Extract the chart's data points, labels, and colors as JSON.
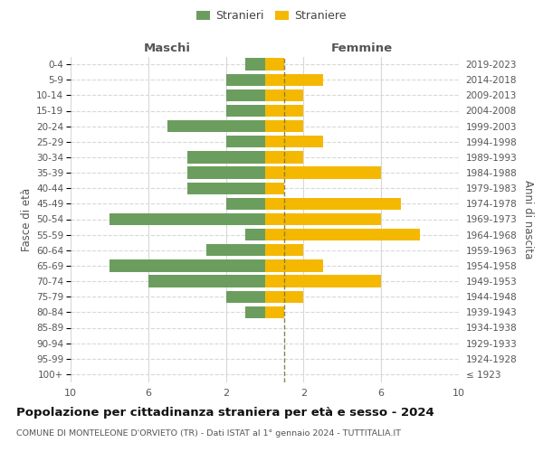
{
  "age_groups": [
    "100+",
    "95-99",
    "90-94",
    "85-89",
    "80-84",
    "75-79",
    "70-74",
    "65-69",
    "60-64",
    "55-59",
    "50-54",
    "45-49",
    "40-44",
    "35-39",
    "30-34",
    "25-29",
    "20-24",
    "15-19",
    "10-14",
    "5-9",
    "0-4"
  ],
  "birth_years": [
    "≤ 1923",
    "1924-1928",
    "1929-1933",
    "1934-1938",
    "1939-1943",
    "1944-1948",
    "1949-1953",
    "1954-1958",
    "1959-1963",
    "1964-1968",
    "1969-1973",
    "1974-1978",
    "1979-1983",
    "1984-1988",
    "1989-1993",
    "1994-1998",
    "1999-2003",
    "2004-2008",
    "2009-2013",
    "2014-2018",
    "2019-2023"
  ],
  "maschi": [
    0,
    0,
    0,
    0,
    1,
    2,
    6,
    8,
    3,
    1,
    8,
    2,
    4,
    4,
    4,
    2,
    5,
    2,
    2,
    2,
    1
  ],
  "femmine": [
    0,
    0,
    0,
    0,
    1,
    2,
    6,
    3,
    2,
    8,
    6,
    7,
    1,
    6,
    2,
    3,
    2,
    2,
    2,
    3,
    1
  ],
  "male_color": "#6b9e5e",
  "female_color": "#f5b800",
  "center_line_color": "#7a7a3a",
  "title": "Popolazione per cittadinanza straniera per età e sesso - 2024",
  "subtitle": "COMUNE DI MONTELEONE D'ORVIETO (TR) - Dati ISTAT al 1° gennaio 2024 - TUTTITALIA.IT",
  "ylabel_left": "Fasce di età",
  "ylabel_right": "Anni di nascita",
  "xlabel_maschi": "Maschi",
  "xlabel_femmine": "Femmine",
  "legend_male": "Stranieri",
  "legend_female": "Straniere",
  "xlim": 10,
  "xtick_positions": [
    -10,
    -6,
    -2,
    2,
    6,
    10
  ],
  "background_color": "#ffffff",
  "grid_color": "#d8d8d8",
  "text_color": "#555555",
  "title_color": "#111111",
  "subtitle_color": "#555555"
}
